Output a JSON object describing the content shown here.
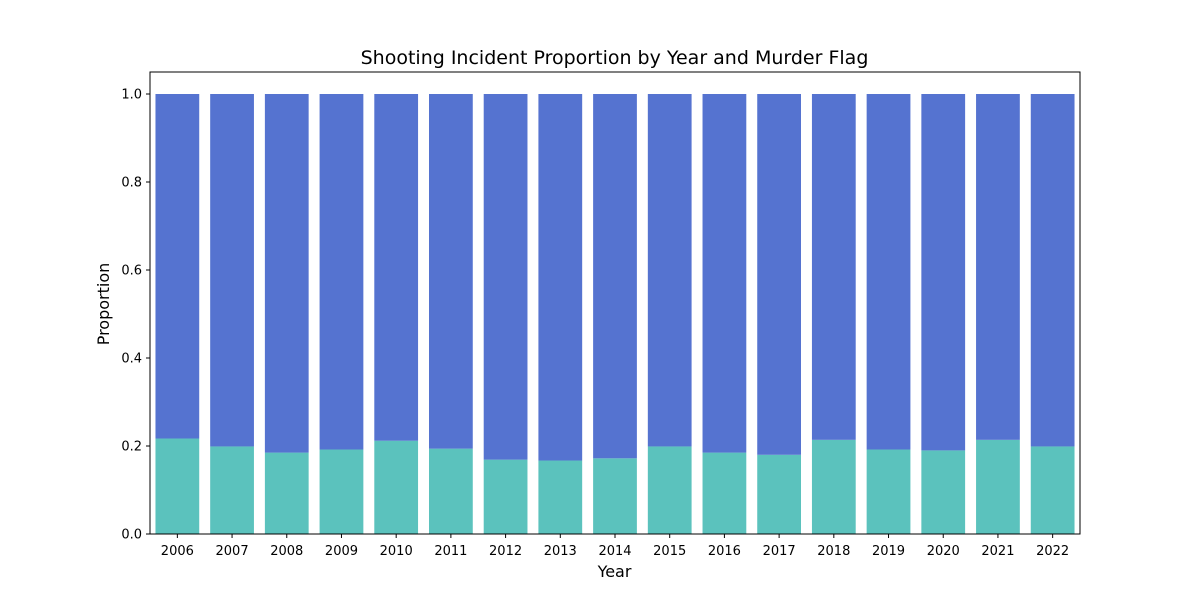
{
  "chart_data": {
    "type": "bar",
    "stacked": true,
    "title": "Shooting Incident Proportion by Year and Murder Flag",
    "xlabel": "Year",
    "ylabel": "Proportion",
    "ylim": [
      0,
      1.05
    ],
    "yticks": [
      "0.0",
      "0.2",
      "0.4",
      "0.6",
      "0.8",
      "1.0"
    ],
    "grid": false,
    "legend": "none",
    "categories": [
      "2006",
      "2007",
      "2008",
      "2009",
      "2010",
      "2011",
      "2012",
      "2013",
      "2014",
      "2015",
      "2016",
      "2017",
      "2018",
      "2019",
      "2020",
      "2021",
      "2022"
    ],
    "series": [
      {
        "color": "#5bc2bd",
        "values": [
          0.217,
          0.199,
          0.185,
          0.192,
          0.212,
          0.194,
          0.169,
          0.167,
          0.172,
          0.199,
          0.185,
          0.18,
          0.214,
          0.192,
          0.19,
          0.214,
          0.199
        ]
      },
      {
        "color": "#5573d0",
        "values": [
          0.783,
          0.801,
          0.815,
          0.808,
          0.788,
          0.806,
          0.831,
          0.833,
          0.828,
          0.801,
          0.815,
          0.82,
          0.786,
          0.808,
          0.81,
          0.786,
          0.801
        ]
      }
    ]
  }
}
